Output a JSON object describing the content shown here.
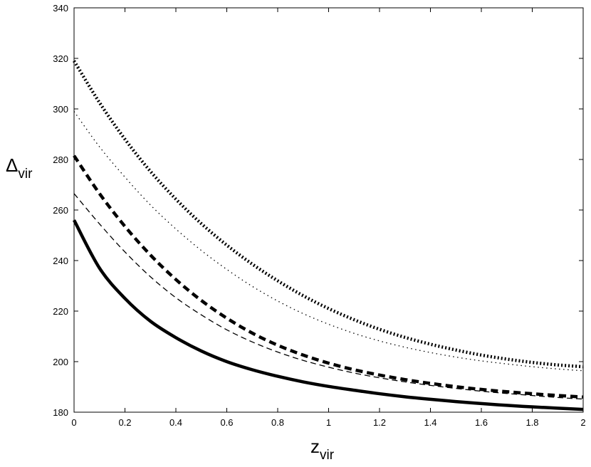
{
  "chart_data": {
    "type": "line",
    "title": "",
    "xlabel": "z",
    "xlabel_sub": "vir",
    "ylabel": "Δ",
    "ylabel_sub": "vir",
    "xlim": [
      0,
      2
    ],
    "ylim": [
      180,
      340
    ],
    "xticks": [
      0,
      0.2,
      0.4,
      0.6,
      0.8,
      1,
      1.2,
      1.4,
      1.6,
      1.8,
      2
    ],
    "xtick_labels": [
      "0",
      "0.2",
      "0.4",
      "0.6",
      "0.8",
      "1",
      "1.2",
      "1.4",
      "1.6",
      "1.8",
      "2"
    ],
    "yticks": [
      180,
      200,
      220,
      240,
      260,
      280,
      300,
      320,
      340
    ],
    "ytick_labels": [
      "180",
      "200",
      "220",
      "240",
      "260",
      "280",
      "300",
      "320",
      "340"
    ],
    "grid": false,
    "legend": "none",
    "line_color": "#000000",
    "series": [
      {
        "style": "solid-thick",
        "x": [
          0,
          0.1,
          0.2,
          0.3,
          0.4,
          0.5,
          0.6,
          0.7,
          0.8,
          0.9,
          1.0,
          1.1,
          1.2,
          1.3,
          1.4,
          1.5,
          1.6,
          1.7,
          1.8,
          1.9,
          2.0
        ],
        "y": [
          256,
          237,
          225,
          216,
          209.5,
          204.2,
          200,
          196.8,
          194.2,
          192,
          190.2,
          188.7,
          187.3,
          186.1,
          185.1,
          184.2,
          183.4,
          182.7,
          182.1,
          181.6,
          181.1
        ]
      },
      {
        "style": "dashed-thin",
        "x": [
          0,
          0.1,
          0.2,
          0.3,
          0.4,
          0.5,
          0.6,
          0.7,
          0.8,
          0.9,
          1.0,
          1.1,
          1.2,
          1.3,
          1.4,
          1.5,
          1.6,
          1.7,
          1.8,
          1.9,
          2.0
        ],
        "y": [
          266.5,
          254.5,
          243.4,
          233.6,
          225.3,
          218.5,
          212.6,
          207.8,
          203.8,
          200.5,
          197.8,
          195.5,
          193.6,
          192,
          190.6,
          189.4,
          188.3,
          187.4,
          186.6,
          185.8,
          185.2
        ]
      },
      {
        "style": "dashed-thick",
        "x": [
          0,
          0.1,
          0.2,
          0.3,
          0.4,
          0.5,
          0.6,
          0.7,
          0.8,
          0.9,
          1.0,
          1.1,
          1.2,
          1.3,
          1.4,
          1.5,
          1.6,
          1.7,
          1.8,
          1.9,
          2.0
        ],
        "y": [
          281.5,
          266.5,
          253.5,
          242.2,
          232.5,
          224.2,
          217.2,
          211.3,
          206.5,
          202.6,
          199.4,
          196.8,
          194.7,
          192.9,
          191.4,
          190.1,
          189,
          188.1,
          187.3,
          186.6,
          186
        ]
      },
      {
        "style": "dotted-thin",
        "x": [
          0,
          0.1,
          0.2,
          0.3,
          0.4,
          0.5,
          0.6,
          0.7,
          0.8,
          0.9,
          1.0,
          1.1,
          1.2,
          1.3,
          1.4,
          1.5,
          1.6,
          1.7,
          1.8,
          1.9,
          2.0
        ],
        "y": [
          299,
          285,
          273,
          262,
          252.5,
          244,
          236.5,
          229.8,
          224,
          219,
          214.8,
          211.2,
          208.2,
          205.7,
          203.6,
          201.8,
          200.3,
          199.1,
          198,
          197.1,
          196.4
        ]
      },
      {
        "style": "dotted-thick",
        "x": [
          0,
          0.1,
          0.2,
          0.3,
          0.4,
          0.5,
          0.6,
          0.7,
          0.8,
          0.9,
          1.0,
          1.1,
          1.2,
          1.3,
          1.4,
          1.5,
          1.6,
          1.7,
          1.8,
          1.9,
          2.0
        ],
        "y": [
          319,
          302.5,
          288,
          275.3,
          264.3,
          254.6,
          246.1,
          238.6,
          232,
          226.1,
          221,
          216.6,
          212.8,
          209.6,
          206.9,
          204.6,
          202.6,
          201,
          199.7,
          198.7,
          198
        ]
      }
    ]
  }
}
